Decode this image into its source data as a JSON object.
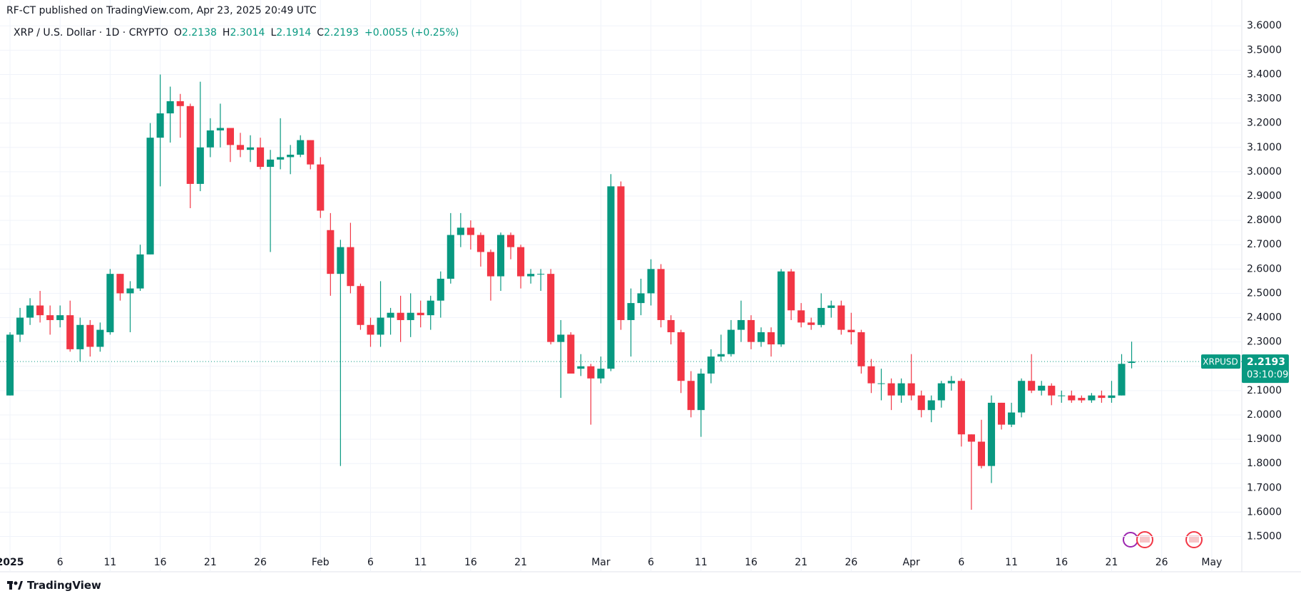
{
  "header": {
    "published": "RF-CT published on TradingView.com, Apr 23, 2025 20:49 UTC",
    "symbol_title": "XRP / U.S. Dollar · 1D · CRYPTO",
    "ohlc": [
      {
        "key": "O",
        "value": "2.2138"
      },
      {
        "key": "H",
        "value": "2.3014"
      },
      {
        "key": "L",
        "value": "2.1914"
      },
      {
        "key": "C",
        "value": "2.2193"
      }
    ],
    "change": "+0.0055 (+0.25%)"
  },
  "chart_data": {
    "type": "candlestick",
    "x": [
      "2025-01-01",
      "2025-01-02",
      "2025-01-03",
      "2025-01-04",
      "2025-01-05",
      "2025-01-06",
      "2025-01-07",
      "2025-01-08",
      "2025-01-09",
      "2025-01-10",
      "2025-01-11",
      "2025-01-12",
      "2025-01-13",
      "2025-01-14",
      "2025-01-15",
      "2025-01-16",
      "2025-01-17",
      "2025-01-18",
      "2025-01-19",
      "2025-01-20",
      "2025-01-21",
      "2025-01-22",
      "2025-01-23",
      "2025-01-24",
      "2025-01-25",
      "2025-01-26",
      "2025-01-27",
      "2025-01-28",
      "2025-01-29",
      "2025-01-30",
      "2025-01-31",
      "2025-02-01",
      "2025-02-02",
      "2025-02-03",
      "2025-02-04",
      "2025-02-05",
      "2025-02-06",
      "2025-02-07",
      "2025-02-08",
      "2025-02-09",
      "2025-02-10",
      "2025-02-11",
      "2025-02-12",
      "2025-02-13",
      "2025-02-14",
      "2025-02-15",
      "2025-02-16",
      "2025-02-17",
      "2025-02-18",
      "2025-02-19",
      "2025-02-20",
      "2025-02-21",
      "2025-02-22",
      "2025-02-23",
      "2025-02-24",
      "2025-02-25",
      "2025-02-26",
      "2025-02-27",
      "2025-02-28",
      "2025-03-01",
      "2025-03-02",
      "2025-03-03",
      "2025-03-04",
      "2025-03-05",
      "2025-03-06",
      "2025-03-07",
      "2025-03-08",
      "2025-03-09",
      "2025-03-10",
      "2025-03-11",
      "2025-03-12",
      "2025-03-13",
      "2025-03-14",
      "2025-03-15",
      "2025-03-16",
      "2025-03-17",
      "2025-03-18",
      "2025-03-19",
      "2025-03-20",
      "2025-03-21",
      "2025-03-22",
      "2025-03-23",
      "2025-03-24",
      "2025-03-25",
      "2025-03-26",
      "2025-03-27",
      "2025-03-28",
      "2025-03-29",
      "2025-03-30",
      "2025-03-31",
      "2025-04-01",
      "2025-04-02",
      "2025-04-03",
      "2025-04-04",
      "2025-04-05",
      "2025-04-06",
      "2025-04-07",
      "2025-04-08",
      "2025-04-09",
      "2025-04-10",
      "2025-04-11",
      "2025-04-12",
      "2025-04-13",
      "2025-04-14",
      "2025-04-15",
      "2025-04-16",
      "2025-04-17",
      "2025-04-18",
      "2025-04-19",
      "2025-04-20",
      "2025-04-21",
      "2025-04-22",
      "2025-04-23"
    ],
    "open": [
      2.08,
      2.33,
      2.4,
      2.45,
      2.41,
      2.39,
      2.41,
      2.27,
      2.37,
      2.28,
      2.34,
      2.58,
      2.5,
      2.52,
      2.66,
      3.14,
      3.24,
      3.29,
      3.27,
      2.95,
      3.1,
      3.17,
      3.18,
      3.11,
      3.09,
      3.1,
      3.02,
      3.05,
      3.06,
      3.07,
      3.13,
      3.03,
      2.76,
      2.58,
      2.69,
      2.53,
      2.37,
      2.33,
      2.4,
      2.42,
      2.39,
      2.42,
      2.41,
      2.47,
      2.56,
      2.74,
      2.77,
      2.74,
      2.67,
      2.57,
      2.74,
      2.69,
      2.57,
      2.58,
      2.58,
      2.3,
      2.33,
      2.19,
      2.2,
      2.15,
      2.19,
      2.94,
      2.39,
      2.46,
      2.5,
      2.6,
      2.39,
      2.34,
      2.14,
      2.02,
      2.17,
      2.24,
      2.25,
      2.35,
      2.39,
      2.3,
      2.34,
      2.29,
      2.59,
      2.43,
      2.38,
      2.37,
      2.44,
      2.45,
      2.35,
      2.34,
      2.2,
      2.13,
      2.13,
      2.08,
      2.13,
      2.08,
      2.02,
      2.06,
      2.13,
      2.14,
      1.92,
      1.89,
      1.79,
      2.05,
      1.96,
      2.01,
      2.14,
      2.1,
      2.12,
      2.08,
      2.08,
      2.07,
      2.06,
      2.08,
      2.07,
      2.08,
      2.2138
    ],
    "high": [
      2.34,
      2.44,
      2.48,
      2.51,
      2.45,
      2.45,
      2.47,
      2.4,
      2.39,
      2.38,
      2.6,
      2.58,
      2.55,
      2.7,
      3.2,
      3.4,
      3.35,
      3.32,
      3.28,
      3.37,
      3.22,
      3.28,
      3.18,
      3.16,
      3.15,
      3.14,
      3.09,
      3.22,
      3.11,
      3.15,
      3.13,
      3.06,
      2.83,
      2.72,
      2.79,
      2.54,
      2.4,
      2.55,
      2.44,
      2.49,
      2.5,
      2.47,
      2.49,
      2.59,
      2.83,
      2.83,
      2.8,
      2.75,
      2.68,
      2.75,
      2.75,
      2.7,
      2.6,
      2.6,
      2.6,
      2.39,
      2.34,
      2.25,
      2.21,
      2.24,
      2.99,
      2.96,
      2.52,
      2.56,
      2.64,
      2.62,
      2.41,
      2.35,
      2.18,
      2.19,
      2.27,
      2.33,
      2.39,
      2.47,
      2.41,
      2.36,
      2.36,
      2.6,
      2.6,
      2.46,
      2.4,
      2.5,
      2.47,
      2.47,
      2.42,
      2.35,
      2.23,
      2.19,
      2.15,
      2.15,
      2.25,
      2.1,
      2.08,
      2.14,
      2.16,
      2.15,
      1.92,
      1.98,
      2.08,
      2.05,
      2.05,
      2.15,
      2.25,
      2.14,
      2.13,
      2.1,
      2.1,
      2.08,
      2.09,
      2.1,
      2.14,
      2.25,
      2.3014
    ],
    "low": [
      2.08,
      2.3,
      2.37,
      2.38,
      2.33,
      2.36,
      2.26,
      2.22,
      2.24,
      2.26,
      2.33,
      2.47,
      2.34,
      2.51,
      2.66,
      2.94,
      3.12,
      3.14,
      2.85,
      2.92,
      3.06,
      3.1,
      3.04,
      3.06,
      3.04,
      3.01,
      2.67,
      3.01,
      2.99,
      3.06,
      3.01,
      2.81,
      2.49,
      1.79,
      2.5,
      2.35,
      2.28,
      2.28,
      2.33,
      2.3,
      2.32,
      2.36,
      2.35,
      2.4,
      2.54,
      2.69,
      2.68,
      2.61,
      2.47,
      2.51,
      2.64,
      2.52,
      2.54,
      2.51,
      2.29,
      2.07,
      2.17,
      2.16,
      1.96,
      2.13,
      2.18,
      2.35,
      2.24,
      2.41,
      2.45,
      2.36,
      2.29,
      2.09,
      1.99,
      1.91,
      2.13,
      2.22,
      2.24,
      2.3,
      2.27,
      2.28,
      2.24,
      2.28,
      2.39,
      2.36,
      2.35,
      2.36,
      2.4,
      2.33,
      2.29,
      2.17,
      2.09,
      2.06,
      2.02,
      2.05,
      2.06,
      1.99,
      1.97,
      2.03,
      2.1,
      1.87,
      1.61,
      1.78,
      1.72,
      1.94,
      1.95,
      1.99,
      2.09,
      2.08,
      2.04,
      2.05,
      2.05,
      2.05,
      2.05,
      2.05,
      2.05,
      2.08,
      2.1914
    ],
    "close": [
      2.33,
      2.4,
      2.45,
      2.41,
      2.39,
      2.41,
      2.27,
      2.37,
      2.28,
      2.35,
      2.58,
      2.5,
      2.52,
      2.66,
      3.14,
      3.24,
      3.29,
      3.27,
      2.95,
      3.1,
      3.17,
      3.18,
      3.11,
      3.09,
      3.1,
      3.02,
      3.05,
      3.06,
      3.07,
      3.13,
      3.03,
      2.84,
      2.58,
      2.69,
      2.53,
      2.37,
      2.33,
      2.4,
      2.42,
      2.39,
      2.42,
      2.41,
      2.47,
      2.56,
      2.74,
      2.77,
      2.74,
      2.67,
      2.57,
      2.74,
      2.69,
      2.57,
      2.58,
      2.58,
      2.3,
      2.33,
      2.17,
      2.2,
      2.15,
      2.19,
      2.94,
      2.39,
      2.46,
      2.5,
      2.6,
      2.39,
      2.34,
      2.14,
      2.02,
      2.17,
      2.24,
      2.25,
      2.35,
      2.39,
      2.3,
      2.34,
      2.29,
      2.59,
      2.43,
      2.38,
      2.37,
      2.44,
      2.45,
      2.35,
      2.34,
      2.2,
      2.13,
      2.13,
      2.08,
      2.13,
      2.08,
      2.02,
      2.06,
      2.13,
      2.14,
      1.92,
      1.89,
      1.79,
      2.05,
      1.96,
      2.01,
      2.14,
      2.1,
      2.12,
      2.08,
      2.08,
      2.06,
      2.06,
      2.08,
      2.07,
      2.08,
      2.21,
      2.2193
    ],
    "up_color": "#089981",
    "down_color": "#f23645",
    "xlim": [
      "2024-12-31",
      "2025-05-04"
    ],
    "xticks": [
      {
        "value": "2025-01-01",
        "label": "2025"
      },
      {
        "value": "2025-01-06",
        "label": "6"
      },
      {
        "value": "2025-01-11",
        "label": "11"
      },
      {
        "value": "2025-01-16",
        "label": "16"
      },
      {
        "value": "2025-01-21",
        "label": "21"
      },
      {
        "value": "2025-01-26",
        "label": "26"
      },
      {
        "value": "2025-02-01",
        "label": "Feb"
      },
      {
        "value": "2025-02-06",
        "label": "6"
      },
      {
        "value": "2025-02-11",
        "label": "11"
      },
      {
        "value": "2025-02-16",
        "label": "16"
      },
      {
        "value": "2025-02-21",
        "label": "21"
      },
      {
        "value": "2025-03-01",
        "label": "Mar"
      },
      {
        "value": "2025-03-06",
        "label": "6"
      },
      {
        "value": "2025-03-11",
        "label": "11"
      },
      {
        "value": "2025-03-16",
        "label": "16"
      },
      {
        "value": "2025-03-21",
        "label": "21"
      },
      {
        "value": "2025-03-26",
        "label": "26"
      },
      {
        "value": "2025-04-01",
        "label": "Apr"
      },
      {
        "value": "2025-04-06",
        "label": "6"
      },
      {
        "value": "2025-04-11",
        "label": "11"
      },
      {
        "value": "2025-04-16",
        "label": "16"
      },
      {
        "value": "2025-04-21",
        "label": "21"
      },
      {
        "value": "2025-04-26",
        "label": "26"
      },
      {
        "value": "2025-05-01",
        "label": "May"
      }
    ],
    "ylim": [
      1.44,
      3.63
    ],
    "yticks": [
      {
        "value": 1.5,
        "label": "1.5000"
      },
      {
        "value": 1.6,
        "label": "1.6000"
      },
      {
        "value": 1.7,
        "label": "1.7000"
      },
      {
        "value": 1.8,
        "label": "1.8000"
      },
      {
        "value": 1.9,
        "label": "1.9000"
      },
      {
        "value": 2.0,
        "label": "2.0000"
      },
      {
        "value": 2.1,
        "label": "2.1000"
      },
      {
        "value": 2.2,
        "label": "2.2000"
      },
      {
        "value": 2.3,
        "label": "2.3000"
      },
      {
        "value": 2.4,
        "label": "2.4000"
      },
      {
        "value": 2.5,
        "label": "2.5000"
      },
      {
        "value": 2.6,
        "label": "2.6000"
      },
      {
        "value": 2.7,
        "label": "2.7000"
      },
      {
        "value": 2.8,
        "label": "2.8000"
      },
      {
        "value": 2.9,
        "label": "2.9000"
      },
      {
        "value": 3.0,
        "label": "3.0000"
      },
      {
        "value": 3.1,
        "label": "3.1000"
      },
      {
        "value": 3.2,
        "label": "3.2000"
      },
      {
        "value": 3.3,
        "label": "3.3000"
      },
      {
        "value": 3.4,
        "label": "3.4000"
      },
      {
        "value": 3.5,
        "label": "3.5000"
      },
      {
        "value": 3.6,
        "label": "3.6000"
      }
    ],
    "grid": true,
    "last_price": {
      "symbol": "XRPUSD",
      "value": 2.2193,
      "label": "2.2193",
      "countdown": "03:10:09"
    }
  },
  "footer": {
    "brand": "TradingView"
  }
}
